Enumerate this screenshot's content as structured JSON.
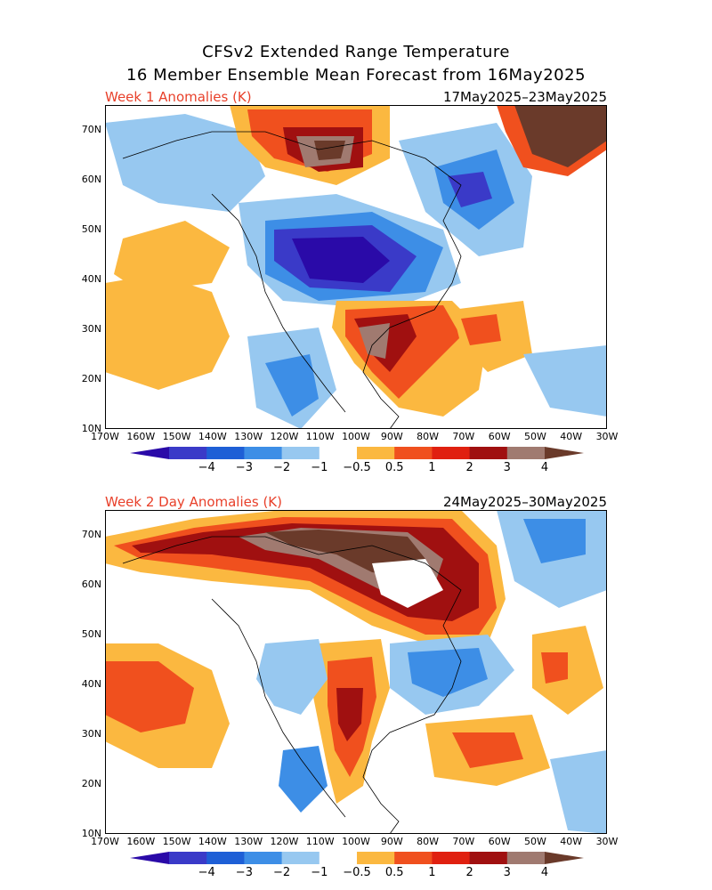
{
  "header": {
    "title_line1": "CFSv2 Extended Range Temperature",
    "title_line2": "16 Member Ensemble Mean Forecast from 16May2025"
  },
  "panels": [
    {
      "label": "Week 1 Anomalies (K)",
      "date_range": "17May2025–23May2025"
    },
    {
      "label": "Week 2 Day Anomalies (K)",
      "date_range": "24May2025–30May2025"
    }
  ],
  "axes": {
    "lat_labels": [
      "70N",
      "60N",
      "50N",
      "40N",
      "30N",
      "20N",
      "10N"
    ],
    "lon_labels": [
      "170W",
      "160W",
      "150W",
      "140W",
      "130W",
      "120W",
      "110W",
      "100W",
      "90W",
      "80W",
      "70W",
      "60W",
      "50W",
      "40W",
      "30W"
    ]
  },
  "colorbar": {
    "tick_labels": [
      "−4",
      "−3",
      "−2",
      "−1",
      "−0.5",
      "0.5",
      "1",
      "2",
      "3",
      "4"
    ],
    "colors": [
      "#2a0aa8",
      "#3a3ac8",
      "#1e5fd6",
      "#3d8ee6",
      "#97c8f0",
      "#ffffff",
      "#fbb840",
      "#f0501e",
      "#e02010",
      "#a01010",
      "#a07a70",
      "#6a3a2a"
    ]
  }
}
